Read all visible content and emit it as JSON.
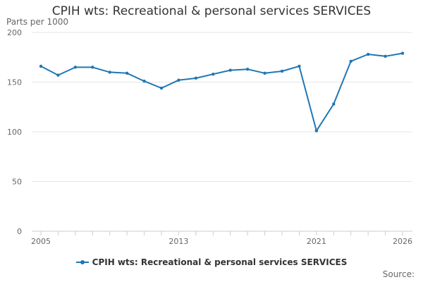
{
  "chart_data": {
    "type": "line",
    "title": "CPIH wts: Recreational & personal services SERVICES",
    "ylabel": "Parts per 1000",
    "xlabel": "",
    "source_label": "Source:",
    "x": [
      2005,
      2006,
      2007,
      2008,
      2009,
      2010,
      2011,
      2012,
      2013,
      2014,
      2015,
      2016,
      2017,
      2018,
      2019,
      2020,
      2021,
      2022,
      2023,
      2024,
      2025,
      2026
    ],
    "x_tick_labels": [
      "2005",
      "2013",
      "2021",
      "2026"
    ],
    "y_ticks": [
      "0",
      "50",
      "100",
      "150",
      "200"
    ],
    "ylim": [
      0,
      200
    ],
    "grid": true,
    "legend_position": "bottom",
    "series": [
      {
        "name": "CPIH wts: Recreational & personal services SERVICES",
        "color": "#1f77b4",
        "values": [
          166,
          157,
          165,
          165,
          160,
          159,
          151,
          144,
          152,
          154,
          158,
          162,
          163,
          159,
          161,
          166,
          101,
          128,
          171,
          178,
          176,
          179
        ]
      }
    ]
  }
}
